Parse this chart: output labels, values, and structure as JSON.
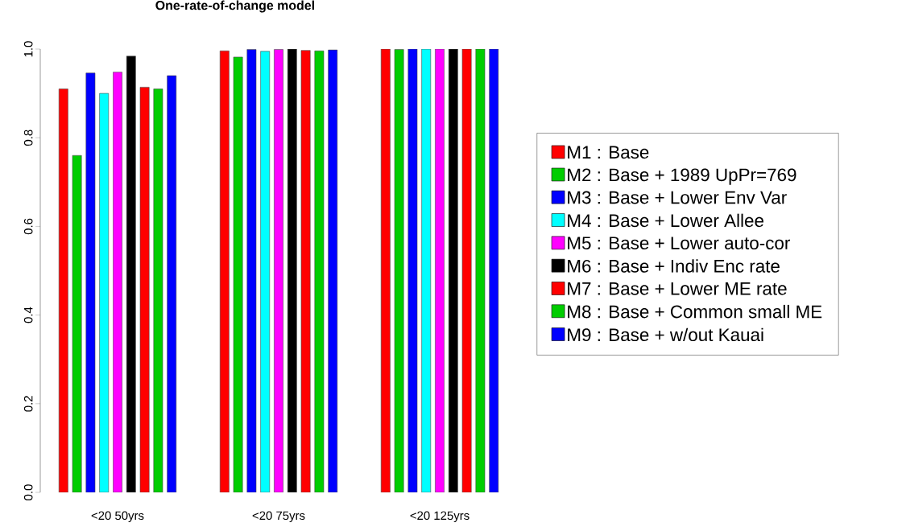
{
  "chart_data": {
    "type": "bar",
    "title": "One-rate-of-change model",
    "categories": [
      "<20 50yrs",
      "<20 75yrs",
      "<20 125yrs"
    ],
    "series": [
      {
        "name": "M1 : Base",
        "color": "#ff0000",
        "values": [
          0.91,
          0.996,
          1.0
        ]
      },
      {
        "name": "M2 : Base + 1989 UpPr=769",
        "color": "#00cd00",
        "values": [
          0.76,
          0.982,
          0.999
        ]
      },
      {
        "name": "M3 : Base + Lower Env Var",
        "color": "#0000ff",
        "values": [
          0.946,
          0.999,
          1.0
        ]
      },
      {
        "name": "M4 : Base + Lower Allee",
        "color": "#00ffff",
        "values": [
          0.9,
          0.995,
          1.0
        ]
      },
      {
        "name": "M5 : Base + Lower auto-cor",
        "color": "#ff00ff",
        "values": [
          0.948,
          0.999,
          1.0
        ]
      },
      {
        "name": "M6 : Base + Indiv Enc rate",
        "color": "#000000",
        "values": [
          0.984,
          1.0,
          1.0
        ]
      },
      {
        "name": "M7 : Base + Lower ME rate",
        "color": "#ff0000",
        "values": [
          0.914,
          0.997,
          1.0
        ]
      },
      {
        "name": "M8 : Base + Common small ME",
        "color": "#00cd00",
        "values": [
          0.91,
          0.996,
          1.0
        ]
      },
      {
        "name": "M9 : Base + w/out Kauai",
        "color": "#0000ff",
        "values": [
          0.94,
          0.998,
          1.0
        ]
      }
    ],
    "ylim": [
      0,
      1
    ],
    "yticks": [
      {
        "value": 0,
        "label": "0.0"
      },
      {
        "value": 0.2,
        "label": "0.2"
      },
      {
        "value": 0.4,
        "label": "0.4"
      },
      {
        "value": 0.6,
        "label": "0.6"
      },
      {
        "value": 0.8,
        "label": "0.8"
      },
      {
        "value": 1,
        "label": "1.0"
      }
    ],
    "grid": false,
    "legend": "right"
  }
}
